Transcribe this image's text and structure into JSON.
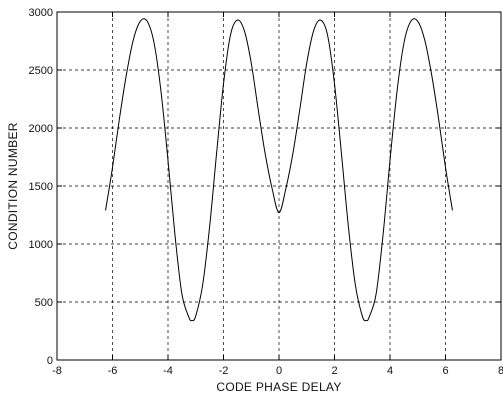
{
  "chart_data": {
    "type": "line",
    "title": "",
    "xlabel": "CODE PHASE DELAY",
    "ylabel": "CONDITION NUMBER",
    "xlim": [
      -8,
      8
    ],
    "ylim": [
      0,
      3000
    ],
    "xticks": [
      -8,
      -6,
      -4,
      -2,
      0,
      2,
      4,
      6,
      8
    ],
    "yticks": [
      0,
      500,
      1000,
      1500,
      2000,
      2500,
      3000
    ],
    "grid": true,
    "grid_style": "dashed",
    "legend": "none",
    "series": [
      {
        "x": [
          -6.25,
          -6.0,
          -5.75,
          -5.5,
          -5.25,
          -5.0,
          -4.75,
          -4.5,
          -4.25,
          -4.0,
          -3.75,
          -3.5,
          -3.25,
          -3.14,
          -3.0,
          -2.75,
          -2.5,
          -2.25,
          -2.0,
          -1.75,
          -1.5,
          -1.25,
          -1.0,
          -0.75,
          -0.5,
          -0.25,
          0.0,
          0.25,
          0.5,
          0.75,
          1.0,
          1.25,
          1.5,
          1.75,
          2.0,
          2.25,
          2.5,
          2.75,
          3.0,
          3.14,
          3.25,
          3.5,
          3.75,
          4.0,
          4.25,
          4.5,
          4.75,
          5.0,
          5.25,
          5.5,
          5.75,
          6.0,
          6.25
        ],
        "y": [
          1290,
          1660,
          2080,
          2460,
          2760,
          2920,
          2920,
          2730,
          2310,
          1720,
          1080,
          570,
          370,
          340,
          380,
          650,
          1150,
          1780,
          2380,
          2800,
          2930,
          2840,
          2560,
          2160,
          1780,
          1480,
          1270,
          1480,
          1780,
          2160,
          2560,
          2840,
          2930,
          2800,
          2380,
          1780,
          1150,
          650,
          380,
          340,
          370,
          570,
          1080,
          1720,
          2310,
          2730,
          2920,
          2920,
          2760,
          2460,
          2080,
          1660,
          1290
        ],
        "color": "#000000"
      }
    ]
  }
}
